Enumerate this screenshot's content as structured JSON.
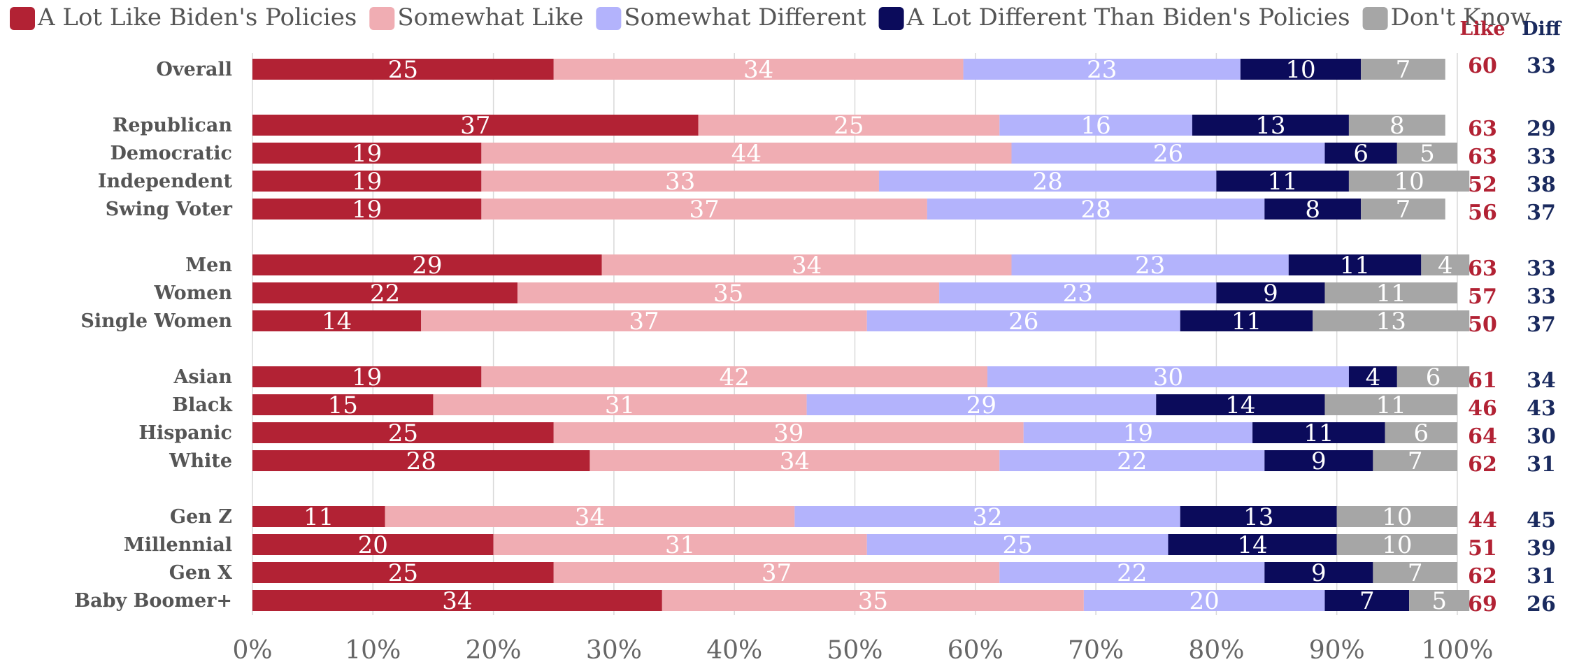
{
  "chart_data": {
    "type": "bar",
    "orientation": "horizontal",
    "stacked": true,
    "percent": true,
    "legend_position": "top",
    "grid": true,
    "xlim": [
      0,
      100
    ],
    "x_ticks": [
      "0%",
      "10%",
      "20%",
      "30%",
      "40%",
      "50%",
      "60%",
      "70%",
      "80%",
      "90%",
      "100%"
    ],
    "categories": [
      "Overall",
      "Republican",
      "Democratic",
      "Independent",
      "Swing Voter",
      "Men",
      "Women",
      "Single Women",
      "Asian",
      "Black",
      "Hispanic",
      "White",
      "Gen Z",
      "Millennial",
      "Gen X",
      "Baby Boomer+"
    ],
    "groups": [
      [
        0
      ],
      [
        1,
        2,
        3,
        4
      ],
      [
        5,
        6,
        7
      ],
      [
        8,
        9,
        10,
        11
      ],
      [
        12,
        13,
        14,
        15
      ]
    ],
    "series": [
      {
        "name": "A Lot Like Biden's Policies",
        "color": "#b22234",
        "values": [
          25,
          37,
          19,
          19,
          19,
          29,
          22,
          14,
          19,
          15,
          25,
          28,
          11,
          20,
          25,
          34
        ]
      },
      {
        "name": "Somewhat Like",
        "color": "#f0adb3",
        "values": [
          34,
          25,
          44,
          33,
          37,
          34,
          35,
          37,
          42,
          31,
          39,
          34,
          34,
          31,
          37,
          35
        ]
      },
      {
        "name": "Somewhat Different",
        "color": "#b3b3fc",
        "values": [
          23,
          16,
          26,
          28,
          28,
          23,
          23,
          26,
          30,
          29,
          19,
          22,
          32,
          25,
          22,
          20
        ]
      },
      {
        "name": "A Lot Different Than Biden's Policies",
        "color": "#0b0b5b",
        "values": [
          10,
          13,
          6,
          11,
          8,
          11,
          9,
          11,
          4,
          14,
          11,
          9,
          13,
          14,
          9,
          7
        ]
      },
      {
        "name": "Don't Know",
        "color": "#a6a6a6",
        "values": [
          7,
          8,
          5,
          10,
          7,
          4,
          11,
          13,
          6,
          11,
          6,
          7,
          10,
          10,
          7,
          5
        ]
      }
    ],
    "side_columns": [
      {
        "header": "Like",
        "color": "#b22234",
        "values": [
          60,
          63,
          63,
          52,
          56,
          63,
          57,
          50,
          61,
          46,
          64,
          62,
          44,
          51,
          62,
          69
        ]
      },
      {
        "header": "Diff",
        "color": "#1a2a5e",
        "values": [
          33,
          29,
          33,
          38,
          37,
          33,
          33,
          37,
          34,
          43,
          30,
          31,
          45,
          39,
          31,
          26
        ]
      }
    ]
  }
}
